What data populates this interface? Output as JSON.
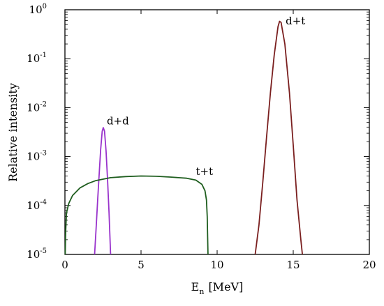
{
  "chart_data": {
    "type": "line",
    "title": "",
    "xlabel_main": "E",
    "xlabel_sub": "n",
    "xlabel_unit": "[MeV]",
    "ylabel": "Relative intensity",
    "xlim": [
      0,
      20
    ],
    "ylim": [
      1e-05,
      1
    ],
    "y_scale": "log",
    "grid": false,
    "x_ticks": [
      0,
      5,
      10,
      15,
      20
    ],
    "x_tick_labels": [
      "0",
      "5",
      "10",
      "15",
      "20"
    ],
    "y_ticks": [
      {
        "base": "10",
        "exp": "0",
        "value": 1
      },
      {
        "base": "10",
        "exp": "-1",
        "value": 0.1
      },
      {
        "base": "10",
        "exp": "-2",
        "value": 0.01
      },
      {
        "base": "10",
        "exp": "-3",
        "value": 0.001
      },
      {
        "base": "10",
        "exp": "-4",
        "value": 0.0001
      },
      {
        "base": "10",
        "exp": "-5",
        "value": 1e-05
      }
    ],
    "series": [
      {
        "name": "d+d",
        "color": "#9933cc",
        "label_at": [
          2.75,
          0.0045
        ],
        "points": [
          [
            1.95,
            1e-05
          ],
          [
            2.05,
            3.5e-05
          ],
          [
            2.15,
            0.00013
          ],
          [
            2.25,
            0.00045
          ],
          [
            2.35,
            0.0014
          ],
          [
            2.45,
            0.0033
          ],
          [
            2.52,
            0.0039
          ],
          [
            2.6,
            0.0033
          ],
          [
            2.7,
            0.0013
          ],
          [
            2.8,
            0.00035
          ],
          [
            2.9,
            7e-05
          ],
          [
            3.0,
            1e-05
          ]
        ]
      },
      {
        "name": "t+t",
        "color": "#1f5e1f",
        "label_at": [
          8.6,
          0.00042
        ],
        "points": [
          [
            0.02,
            1e-05
          ],
          [
            0.05,
            3e-05
          ],
          [
            0.1,
            7e-05
          ],
          [
            0.25,
            0.00011
          ],
          [
            0.5,
            0.00016
          ],
          [
            1.0,
            0.00023
          ],
          [
            1.5,
            0.00028
          ],
          [
            2.0,
            0.00032
          ],
          [
            3.0,
            0.00037
          ],
          [
            4.0,
            0.00039
          ],
          [
            5.0,
            0.0004
          ],
          [
            6.0,
            0.000395
          ],
          [
            7.0,
            0.00038
          ],
          [
            8.0,
            0.00036
          ],
          [
            8.6,
            0.00033
          ],
          [
            9.0,
            0.00027
          ],
          [
            9.2,
            0.0002
          ],
          [
            9.3,
            0.00013
          ],
          [
            9.35,
            6e-05
          ],
          [
            9.4,
            1e-05
          ]
        ]
      },
      {
        "name": "d+t",
        "color": "#7a1f1f",
        "label_at": [
          14.5,
          0.5
        ],
        "points": [
          [
            12.5,
            1e-05
          ],
          [
            12.75,
            4e-05
          ],
          [
            13.0,
            0.0003
          ],
          [
            13.25,
            0.0025
          ],
          [
            13.5,
            0.02
          ],
          [
            13.75,
            0.12
          ],
          [
            14.0,
            0.45
          ],
          [
            14.1,
            0.58
          ],
          [
            14.2,
            0.55
          ],
          [
            14.45,
            0.2
          ],
          [
            14.75,
            0.02
          ],
          [
            15.0,
            0.0017
          ],
          [
            15.25,
            0.00013
          ],
          [
            15.5,
            2e-05
          ],
          [
            15.6,
            1e-05
          ]
        ]
      }
    ]
  }
}
